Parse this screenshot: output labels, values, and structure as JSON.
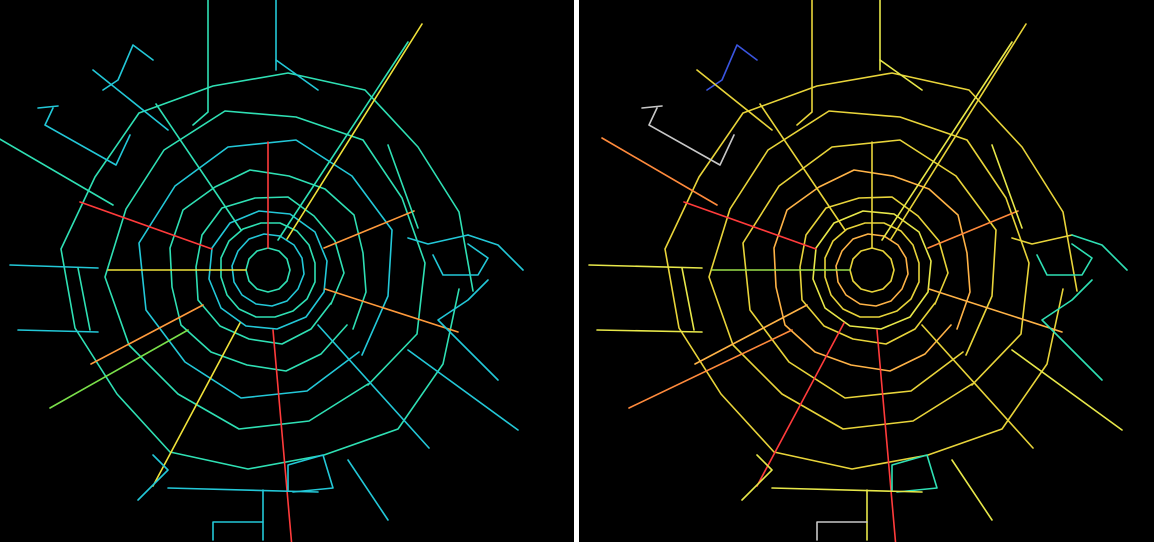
{
  "figure": {
    "panels": [
      {
        "id": "left",
        "palette": {
          "primary": "#2fe0b4",
          "secondary": "#23c8d8",
          "tertiary": "#2a6fe0",
          "accent_warm": "#f0e23a",
          "accent_orange": "#ff9a3c",
          "accent_red": "#ff3b3b",
          "accent_green": "#7ae04a"
        }
      },
      {
        "id": "right",
        "palette": {
          "primary": "#e8d43a",
          "secondary": "#ffb347",
          "tertiary": "#2fe0b4",
          "accent_warm": "#e8e84a",
          "accent_orange": "#ff8a3c",
          "accent_red": "#ff3b3b",
          "accent_green": "#9be04a",
          "accent_gray": "#c8c8c8",
          "accent_blue": "#3a55e0"
        }
      }
    ],
    "background_color": "#000000",
    "separator_color": "#ffffff"
  }
}
